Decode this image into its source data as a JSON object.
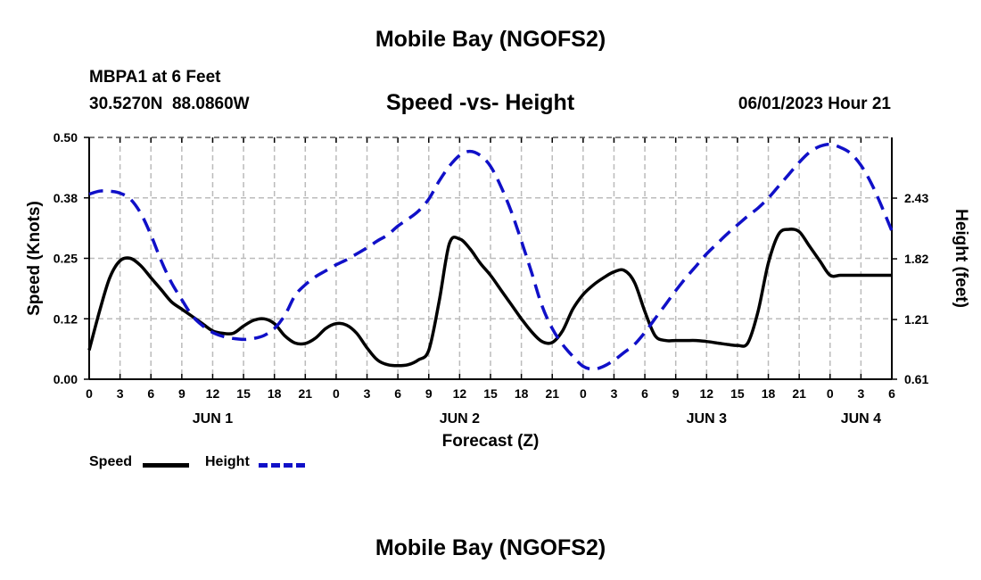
{
  "page_title": "Mobile Bay (NGOFS2)",
  "station": {
    "name_line": "MBPA1 at 6 Feet",
    "coords_line": "30.5270N  88.0860W",
    "timestamp": "06/01/2023 Hour 21"
  },
  "footer_title": "Mobile Bay (NGOFS2)",
  "chart_data": {
    "type": "line",
    "title": "Speed -vs- Height",
    "xlabel": "Forecast (Z)",
    "ylabel": "Speed (Knots)",
    "y2label": "Height (feet)",
    "x_unit": "hours since 2023-06-01 00Z",
    "xlim": [
      0,
      78
    ],
    "ylim": [
      0,
      0.5
    ],
    "y2lim": [
      0.61,
      3.04
    ],
    "grid": true,
    "x_ticks": [
      {
        "x": 0,
        "label": "0"
      },
      {
        "x": 3,
        "label": "3"
      },
      {
        "x": 6,
        "label": "6"
      },
      {
        "x": 9,
        "label": "9"
      },
      {
        "x": 12,
        "label": "12"
      },
      {
        "x": 15,
        "label": "15"
      },
      {
        "x": 18,
        "label": "18"
      },
      {
        "x": 21,
        "label": "21"
      },
      {
        "x": 24,
        "label": "0"
      },
      {
        "x": 27,
        "label": "3"
      },
      {
        "x": 30,
        "label": "6"
      },
      {
        "x": 33,
        "label": "9"
      },
      {
        "x": 36,
        "label": "12"
      },
      {
        "x": 39,
        "label": "15"
      },
      {
        "x": 42,
        "label": "18"
      },
      {
        "x": 45,
        "label": "21"
      },
      {
        "x": 48,
        "label": "0"
      },
      {
        "x": 51,
        "label": "3"
      },
      {
        "x": 54,
        "label": "6"
      },
      {
        "x": 57,
        "label": "9"
      },
      {
        "x": 60,
        "label": "12"
      },
      {
        "x": 63,
        "label": "15"
      },
      {
        "x": 66,
        "label": "18"
      },
      {
        "x": 69,
        "label": "21"
      },
      {
        "x": 72,
        "label": "0"
      },
      {
        "x": 75,
        "label": "3"
      },
      {
        "x": 78,
        "label": "6"
      }
    ],
    "day_labels": [
      {
        "x": 12,
        "label": "JUN 1"
      },
      {
        "x": 36,
        "label": "JUN 2"
      },
      {
        "x": 60,
        "label": "JUN 3"
      },
      {
        "x": 75,
        "label": "JUN 4"
      }
    ],
    "y_ticks": [
      {
        "v": 0.0,
        "label": "0.00"
      },
      {
        "v": 0.125,
        "label": "0.12"
      },
      {
        "v": 0.25,
        "label": "0.25"
      },
      {
        "v": 0.375,
        "label": "0.38"
      },
      {
        "v": 0.5,
        "label": "0.50"
      }
    ],
    "y2_ticks": [
      {
        "v": 0.61,
        "label": "0.61"
      },
      {
        "v": 1.21,
        "label": "1.21"
      },
      {
        "v": 1.82,
        "label": "1.82"
      },
      {
        "v": 2.43,
        "label": "2.43"
      }
    ],
    "series": [
      {
        "name": "Speed",
        "axis": "left",
        "color": "#000000",
        "dash": "solid",
        "x": [
          0,
          1,
          2,
          3,
          4,
          5,
          6,
          7,
          8,
          9,
          10,
          11,
          12,
          13,
          14,
          15,
          16,
          17,
          18,
          19,
          20,
          21,
          22,
          23,
          24,
          25,
          26,
          27,
          28,
          29,
          30,
          31,
          32,
          33,
          34,
          35,
          36,
          37,
          38,
          39,
          40,
          41,
          42,
          43,
          44,
          45,
          46,
          47,
          48,
          49,
          50,
          51,
          52,
          53,
          54,
          55,
          56,
          57,
          58,
          59,
          60,
          61,
          62,
          63,
          64,
          65,
          66,
          67,
          68,
          69,
          70,
          71,
          72,
          73,
          74,
          75,
          76,
          77,
          78
        ],
        "values": [
          0.06,
          0.14,
          0.21,
          0.245,
          0.25,
          0.235,
          0.21,
          0.185,
          0.16,
          0.145,
          0.13,
          0.115,
          0.1,
          0.095,
          0.095,
          0.11,
          0.122,
          0.125,
          0.115,
          0.09,
          0.075,
          0.074,
          0.085,
          0.105,
          0.115,
          0.112,
          0.095,
          0.065,
          0.04,
          0.03,
          0.028,
          0.03,
          0.04,
          0.06,
          0.16,
          0.28,
          0.29,
          0.27,
          0.24,
          0.215,
          0.185,
          0.155,
          0.125,
          0.098,
          0.078,
          0.076,
          0.1,
          0.145,
          0.175,
          0.195,
          0.21,
          0.222,
          0.225,
          0.2,
          0.14,
          0.09,
          0.08,
          0.08,
          0.08,
          0.08,
          0.078,
          0.075,
          0.072,
          0.07,
          0.075,
          0.14,
          0.24,
          0.3,
          0.31,
          0.305,
          0.275,
          0.245,
          0.215,
          0.215,
          0.215,
          0.215,
          0.215,
          0.215,
          0.215
        ]
      },
      {
        "name": "Height",
        "axis": "right",
        "color": "#1010c8",
        "dash": "dashed",
        "x": [
          0,
          1,
          2,
          3,
          4,
          5,
          6,
          7,
          8,
          9,
          10,
          11,
          12,
          13,
          14,
          15,
          16,
          17,
          18,
          19,
          20,
          21,
          22,
          23,
          24,
          25,
          26,
          27,
          28,
          29,
          30,
          31,
          32,
          33,
          34,
          35,
          36,
          37,
          38,
          39,
          40,
          41,
          42,
          43,
          44,
          45,
          46,
          47,
          48,
          49,
          50,
          51,
          52,
          53,
          54,
          55,
          56,
          57,
          58,
          59,
          60,
          61,
          62,
          63,
          64,
          65,
          66,
          67,
          68,
          69,
          70,
          71,
          72,
          73,
          74,
          75,
          76,
          77,
          78
        ],
        "values": [
          2.47,
          2.5,
          2.5,
          2.48,
          2.42,
          2.28,
          2.06,
          1.8,
          1.58,
          1.41,
          1.25,
          1.15,
          1.08,
          1.04,
          1.02,
          1.01,
          1.02,
          1.05,
          1.12,
          1.25,
          1.45,
          1.56,
          1.64,
          1.7,
          1.76,
          1.81,
          1.87,
          1.93,
          2.0,
          2.06,
          2.15,
          2.22,
          2.3,
          2.42,
          2.6,
          2.75,
          2.86,
          2.9,
          2.86,
          2.75,
          2.55,
          2.3,
          2.0,
          1.68,
          1.35,
          1.12,
          0.96,
          0.84,
          0.74,
          0.71,
          0.74,
          0.8,
          0.88,
          0.96,
          1.08,
          1.22,
          1.36,
          1.5,
          1.63,
          1.75,
          1.87,
          1.97,
          2.07,
          2.16,
          2.25,
          2.33,
          2.43,
          2.55,
          2.67,
          2.79,
          2.89,
          2.95,
          2.97,
          2.94,
          2.88,
          2.76,
          2.58,
          2.35,
          2.1
        ]
      }
    ],
    "legend": [
      {
        "label": "Speed",
        "color": "#000000",
        "dash": "solid"
      },
      {
        "label": "Height",
        "color": "#1010c8",
        "dash": "dashed"
      }
    ],
    "legend_position": "bottom-left"
  }
}
